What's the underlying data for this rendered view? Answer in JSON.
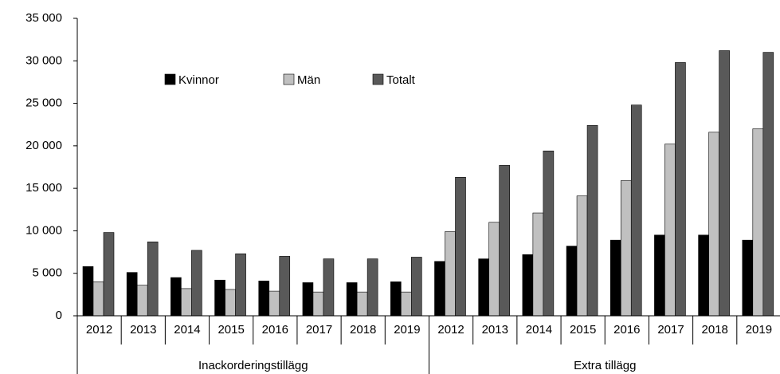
{
  "chart_data": {
    "type": "bar",
    "categories": [
      "2012",
      "2013",
      "2014",
      "2015",
      "2016",
      "2017",
      "2018",
      "2019",
      "2012",
      "2013",
      "2014",
      "2015",
      "2016",
      "2017",
      "2018",
      "2019"
    ],
    "groups": [
      "Inackorderingstillägg",
      "Extra tillägg"
    ],
    "series": [
      {
        "name": "Kvinnor",
        "color": "#000000",
        "values": [
          5800,
          5100,
          4500,
          4200,
          4100,
          3900,
          3900,
          4000,
          6400,
          6700,
          7200,
          8200,
          8900,
          9500,
          9500,
          8900
        ]
      },
      {
        "name": "Män",
        "color": "#c0c0c0",
        "values": [
          4000,
          3600,
          3200,
          3100,
          2900,
          2800,
          2800,
          2800,
          9900,
          11000,
          12100,
          14100,
          15900,
          20200,
          21600,
          22000
        ]
      },
      {
        "name": "Totalt",
        "color": "#595959",
        "values": [
          9800,
          8700,
          7700,
          7300,
          7000,
          6700,
          6700,
          6900,
          16300,
          17700,
          19400,
          22400,
          24800,
          29800,
          31200,
          31000
        ]
      }
    ],
    "ylim": [
      0,
      35000
    ],
    "yticks": [
      0,
      {
        "value": 5000,
        "label": "5 000"
      },
      {
        "value": 10000,
        "label": "10 000"
      },
      {
        "value": 15000,
        "label": "15 000"
      },
      {
        "value": 20000,
        "label": "20 000"
      },
      {
        "value": 25000,
        "label": "25 000"
      },
      {
        "value": 30000,
        "label": "30 000"
      },
      {
        "value": 35000,
        "label": "35 000"
      }
    ],
    "grid": false,
    "legend": "top-left"
  }
}
